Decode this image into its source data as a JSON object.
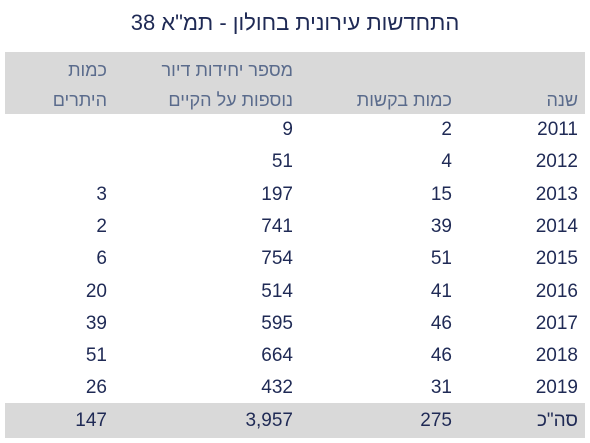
{
  "title": "התחדשות עירונית בחולון - תמ\"א 38",
  "table": {
    "headers": [
      [
        "שנה"
      ],
      [
        "כמות בקשות"
      ],
      [
        "מספר יחידות דיור",
        "נוספות על הקיים"
      ],
      [
        "כמות",
        "היתרים"
      ]
    ],
    "rows": [
      [
        "2011",
        2,
        9,
        null
      ],
      [
        "2012",
        4,
        51,
        null
      ],
      [
        "2013",
        15,
        197,
        3
      ],
      [
        "2014",
        39,
        741,
        2
      ],
      [
        "2015",
        51,
        754,
        6
      ],
      [
        "2016",
        41,
        514,
        20
      ],
      [
        "2017",
        46,
        595,
        39
      ],
      [
        "2018",
        46,
        664,
        51
      ],
      [
        "2019",
        31,
        432,
        26
      ]
    ],
    "total": [
      "סה\"כ",
      275,
      "3,957",
      147
    ]
  }
}
